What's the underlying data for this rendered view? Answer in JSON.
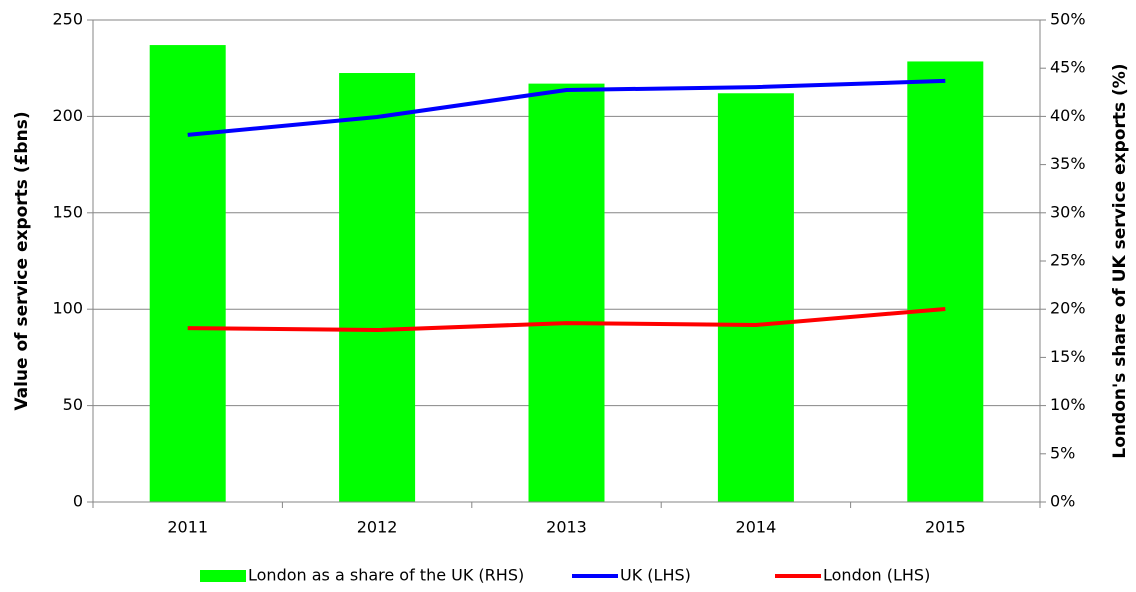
{
  "chart_data": {
    "type": "bar",
    "categories": [
      "2011",
      "2012",
      "2013",
      "2014",
      "2015"
    ],
    "series": [
      {
        "name": "London as a share of the UK (RHS)",
        "type": "bar",
        "axis": "y2",
        "color": "#00ff00",
        "values": [
          47.4,
          44.5,
          43.4,
          42.4,
          45.7
        ]
      },
      {
        "name": "UK (LHS)",
        "type": "line",
        "axis": "y",
        "color": "#0000ff",
        "values": [
          190.4,
          199.7,
          213.7,
          215.2,
          218.4
        ]
      },
      {
        "name": "London (LHS)",
        "type": "line",
        "axis": "y",
        "color": "#ff0000",
        "values": [
          90.2,
          89.2,
          92.8,
          91.8,
          100.1
        ]
      }
    ],
    "ylabel": "Value of service exports (£bns)",
    "y2label": "London's share of UK service exports (%)",
    "ylim": [
      0,
      250
    ],
    "yticks": [
      0,
      50,
      100,
      150,
      200,
      250
    ],
    "y2lim": [
      0,
      50
    ],
    "y2ticks": [
      {
        "value": 0,
        "label": "0%"
      },
      {
        "value": 5,
        "label": "5%"
      },
      {
        "value": 10,
        "label": "10%"
      },
      {
        "value": 15,
        "label": "15%"
      },
      {
        "value": 20,
        "label": "20%"
      },
      {
        "value": 25,
        "label": "25%"
      },
      {
        "value": 30,
        "label": "30%"
      },
      {
        "value": 35,
        "label": "35%"
      },
      {
        "value": 40,
        "label": "40%"
      },
      {
        "value": 45,
        "label": "45%"
      },
      {
        "value": 50,
        "label": "50%"
      }
    ],
    "grid": true,
    "legend": "bottom"
  }
}
